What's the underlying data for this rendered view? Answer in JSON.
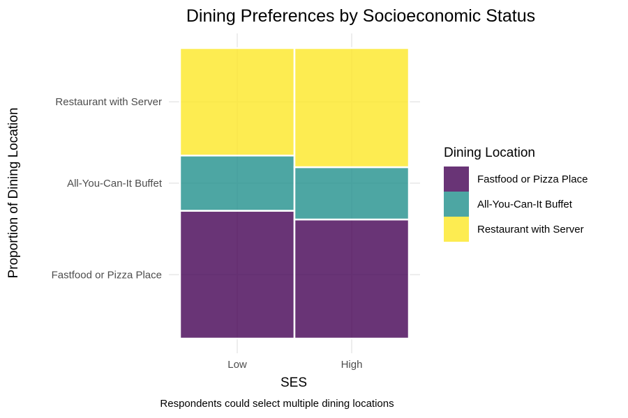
{
  "chart_data": {
    "type": "mosaic",
    "title": "Dining Preferences by Socioeconomic Status",
    "xlabel": "SES",
    "ylabel": "Proportion of Dining Location",
    "caption": "Respondents could select multiple dining locations",
    "categories": [
      "Low",
      "High"
    ],
    "category_widths": [
      0.5,
      0.5
    ],
    "series": [
      {
        "name": "Fastfood or Pizza Place",
        "color": "#440154",
        "values": [
          0.44,
          0.41
        ]
      },
      {
        "name": "All-You-Can-It Buffet",
        "color": "#21908C",
        "values": [
          0.19,
          0.18
        ]
      },
      {
        "name": "Restaurant with Server",
        "color": "#FDE725",
        "values": [
          0.37,
          0.41
        ]
      }
    ],
    "y_tick_labels": [
      "Fastfood or Pizza Place",
      "All-You-Can-It Buffet",
      "Restaurant with Server"
    ],
    "legend": {
      "title": "Dining Location",
      "position": "right"
    },
    "grid": true,
    "ylim": [
      0,
      1
    ]
  }
}
